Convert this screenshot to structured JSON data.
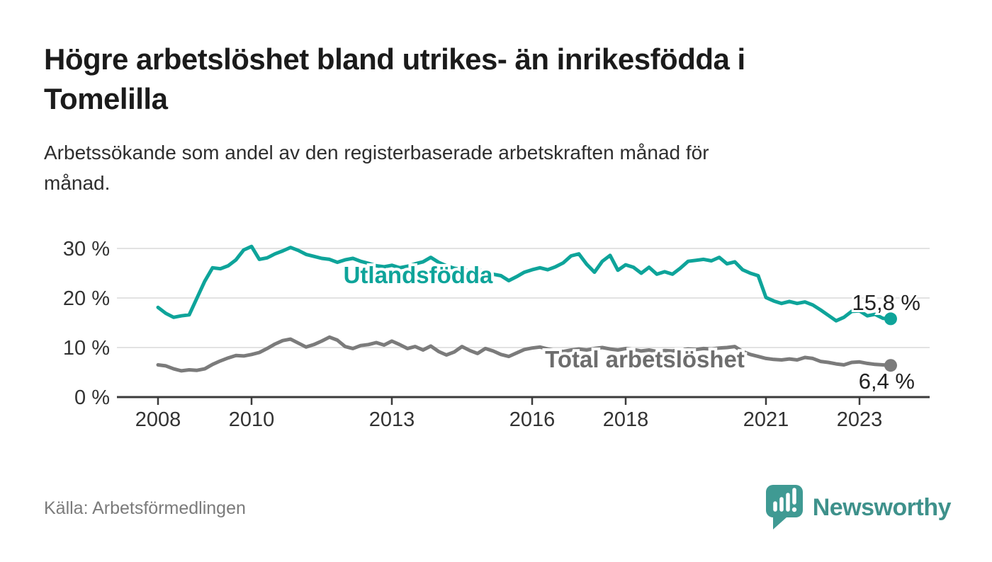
{
  "header": {
    "title": "Högre arbetslöshet bland utrikes- än inrikesfödda i\nTomelilla",
    "subtitle": "Arbetssökande som andel av den registerbaserade arbetskraften månad för\nmånad."
  },
  "footer": {
    "source": "Källa: Arbetsförmedlingen",
    "brand": {
      "name": "Newsworthy",
      "icon": "newsworthy-speech-bubble-chart-icon"
    }
  },
  "colors": {
    "background": "#ffffff",
    "accent_teal": "#0ea49a",
    "line_gray": "#7b7b7b",
    "gray_label": "#6d6d6d",
    "grid": "#e2e2e2",
    "axis": "#3b3b3b",
    "tick_text": "#333333",
    "end_label_text": "#222222",
    "text_dark": "#1b1b1b",
    "text_light": "#7b7b7b",
    "brand_teal": "#3e918b"
  },
  "chart_data": {
    "type": "line",
    "title": "Högre arbetslöshet bland utrikes- än inrikesfödda i Tomelilla",
    "subtitle": "Arbetssökande som andel av den registerbaserade arbetskraften månad för månad.",
    "xlabel": "",
    "ylabel": "",
    "grid": "horizontal",
    "legend_position": "inline-labels",
    "x_start_year": 2008,
    "x_step_months": 2,
    "x_end_year": 2023.67,
    "xlim": [
      2007.1,
      2024.6
    ],
    "ylim": [
      0,
      32
    ],
    "xticks": [
      2008,
      2010,
      2013,
      2016,
      2018,
      2021,
      2023
    ],
    "yticks": [
      {
        "value": 0,
        "label": "0 %"
      },
      {
        "value": 10,
        "label": "10 %"
      },
      {
        "value": 20,
        "label": "20 %"
      },
      {
        "value": 30,
        "label": "30 %"
      }
    ],
    "series": [
      {
        "name": "Total arbetslöshet",
        "color": "#7b7b7b",
        "label_color": "#6d6d6d",
        "end_label": "6,4 %",
        "last_value": 6.4,
        "values": [
          6.5,
          6.3,
          5.7,
          5.3,
          5.5,
          5.4,
          5.7,
          6.6,
          7.3,
          7.9,
          8.4,
          8.3,
          8.6,
          9.0,
          9.8,
          10.7,
          11.4,
          11.7,
          10.9,
          10.1,
          10.6,
          11.3,
          12.1,
          11.5,
          10.2,
          9.8,
          10.4,
          10.6,
          11.0,
          10.5,
          11.3,
          10.6,
          9.8,
          10.2,
          9.5,
          10.3,
          9.2,
          8.5,
          9.1,
          10.2,
          9.4,
          8.8,
          9.8,
          9.3,
          8.6,
          8.2,
          8.9,
          9.6,
          9.9,
          10.1,
          9.7,
          9.4,
          9.2,
          9.5,
          9.7,
          9.5,
          9.8,
          10.0,
          9.7,
          9.5,
          9.8,
          9.6,
          9.3,
          9.5,
          9.2,
          9.4,
          9.3,
          9.5,
          9.7,
          9.6,
          9.8,
          9.7,
          9.9,
          10.0,
          10.2,
          9.2,
          8.6,
          8.2,
          7.8,
          7.6,
          7.5,
          7.7,
          7.5,
          8.0,
          7.8,
          7.2,
          7.0,
          6.7,
          6.5,
          7.0,
          7.1,
          6.8,
          6.6,
          6.5,
          6.4
        ]
      },
      {
        "name": "Utlandsfödda",
        "color": "#0ea49a",
        "label_color": "#0ea49a",
        "end_label": "15,8 %",
        "last_value": 15.8,
        "values": [
          18.1,
          16.9,
          16.1,
          16.4,
          16.6,
          20.0,
          23.4,
          26.1,
          25.9,
          26.5,
          27.7,
          29.7,
          30.4,
          27.8,
          28.1,
          28.9,
          29.5,
          30.2,
          29.6,
          28.8,
          28.4,
          28.0,
          27.8,
          27.2,
          27.7,
          28.0,
          27.4,
          27.0,
          26.5,
          26.3,
          26.6,
          26.1,
          26.4,
          26.9,
          27.3,
          28.2,
          27.2,
          26.5,
          26.0,
          25.7,
          25.5,
          25.8,
          25.2,
          24.8,
          24.5,
          23.5,
          24.3,
          25.2,
          25.7,
          26.1,
          25.7,
          26.3,
          27.1,
          28.5,
          28.9,
          26.8,
          25.2,
          27.4,
          28.6,
          25.6,
          26.7,
          26.2,
          25.0,
          26.2,
          24.8,
          25.3,
          24.8,
          26.0,
          27.4,
          27.6,
          27.8,
          27.5,
          28.2,
          26.9,
          27.3,
          25.7,
          25.0,
          24.5,
          20.1,
          19.4,
          18.9,
          19.3,
          18.9,
          19.2,
          18.6,
          17.6,
          16.5,
          15.4,
          16.1,
          17.3,
          17.4,
          16.4,
          16.7,
          15.9,
          15.8
        ]
      }
    ]
  }
}
